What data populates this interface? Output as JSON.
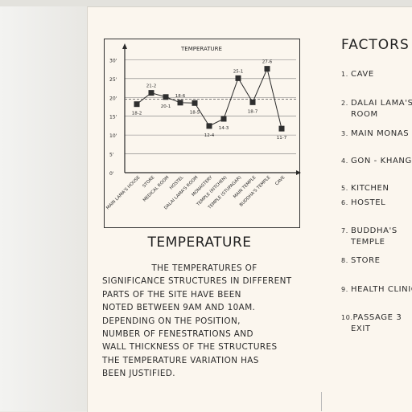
{
  "chart_data": {
    "type": "line",
    "title": "TEMPERATURE",
    "categories": [
      "MAIN LAMA'S HOUSE",
      "STORE",
      "MEDICAL ROOM",
      "HOSTEL",
      "DALAI LAMA'S ROOM",
      "MONASTERY",
      "TEMPLE (KITCHEN)",
      "TEMPLE (STUPAGAR)",
      "MAIN TEMPLE",
      "BUDDHA'S TEMPLE",
      "CAVE"
    ],
    "values": [
      18.2,
      21.2,
      20.1,
      18.6,
      18.5,
      12.4,
      14.3,
      25.1,
      18.7,
      27.6,
      11.7
    ],
    "value_labels": [
      "18-2",
      "21-2",
      "20-1",
      "18-6",
      "18-5",
      "12-4",
      "14-3",
      "25-1",
      "18-7",
      "27-6",
      "11-7"
    ],
    "yticks": [
      "0'",
      "5'",
      "10'",
      "15'",
      "20'",
      "25'",
      "30'"
    ],
    "ylim": [
      0,
      32
    ],
    "reference_line": 19.5,
    "grid": true,
    "xlabel": "",
    "ylabel": ""
  },
  "colors": {
    "paper": "#fbf6ee",
    "ink": "#2a2a2a",
    "marker": "#2e2e2e",
    "dashed": "#555555"
  },
  "body": {
    "title": "TEMPERATURE",
    "lines": [
      "THE TEMPERATURES OF",
      "SIGNIFICANCE STRUCTURES IN DIFFERENT",
      "PARTS OF THE SITE HAVE BEEN",
      "NOTED BETWEEN 9AM AND 10AM.",
      "DEPENDING ON THE POSITION,",
      "NUMBER OF FENESTRATIONS AND",
      "WALL THICKNESS OF THE STRUCTURES",
      "THE TEMPERATURE VARIATION HAS",
      "BEEN JUSTIFIED."
    ]
  },
  "factors": {
    "title": "FACTORS",
    "items": [
      {
        "num": "1.",
        "text": "CAVE",
        "cont": ""
      },
      {
        "num": "2.",
        "text": "DALAI LAMA'S",
        "cont": "ROOM"
      },
      {
        "num": "3.",
        "text": "MAIN MONAS",
        "cont": ""
      },
      {
        "num": "4.",
        "text": "GON - KHANG",
        "cont": ""
      },
      {
        "num": "5.",
        "text": "KITCHEN",
        "cont": ""
      },
      {
        "num": "6.",
        "text": "HOSTEL",
        "cont": ""
      },
      {
        "num": "7.",
        "text": "BUDDHA'S",
        "cont": "TEMPLE"
      },
      {
        "num": "8.",
        "text": "STORE",
        "cont": ""
      },
      {
        "num": "9.",
        "text": "HEALTH CLINIC",
        "cont": ""
      },
      {
        "num": "10.",
        "text": "PASSAGE 3",
        "cont": "EXIT"
      }
    ]
  }
}
